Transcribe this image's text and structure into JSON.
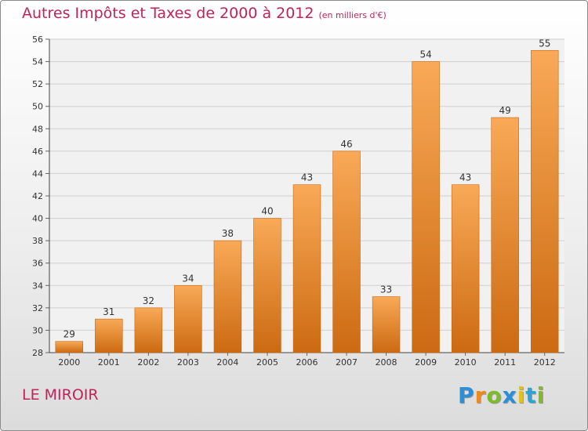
{
  "header": {
    "title": "Autres Impôts et Taxes de 2000 à 2012",
    "subtitle": "(en milliers d'€)"
  },
  "commune": "LE MIROIR",
  "logo": {
    "letters": [
      "P",
      "r",
      "o",
      "x",
      "i",
      "t",
      "i"
    ],
    "colors": [
      "#2a8fd6",
      "#f08a1c",
      "#7dbb2a",
      "#2a8fd6",
      "#e0c21a",
      "#2aa6d6",
      "#7dbb2a"
    ]
  },
  "colors": {
    "bar_top": "#f9a957",
    "bar_bottom": "#cc6a12",
    "text_accent": "#c0235a"
  },
  "chart_data": {
    "type": "bar",
    "title": "Autres Impôts et Taxes de 2000 à 2012",
    "subtitle": "(en milliers d'€)",
    "categories": [
      "2000",
      "2001",
      "2002",
      "2003",
      "2004",
      "2005",
      "2006",
      "2007",
      "2008",
      "2009",
      "2010",
      "2011",
      "2012"
    ],
    "values": [
      29,
      31,
      32,
      34,
      38,
      40,
      43,
      46,
      33,
      54,
      43,
      49,
      55
    ],
    "ylim": [
      28,
      56
    ],
    "yticks": [
      28,
      30,
      32,
      34,
      36,
      38,
      40,
      42,
      44,
      46,
      48,
      50,
      52,
      54,
      56
    ],
    "grid": true,
    "xlabel": "",
    "ylabel": ""
  }
}
